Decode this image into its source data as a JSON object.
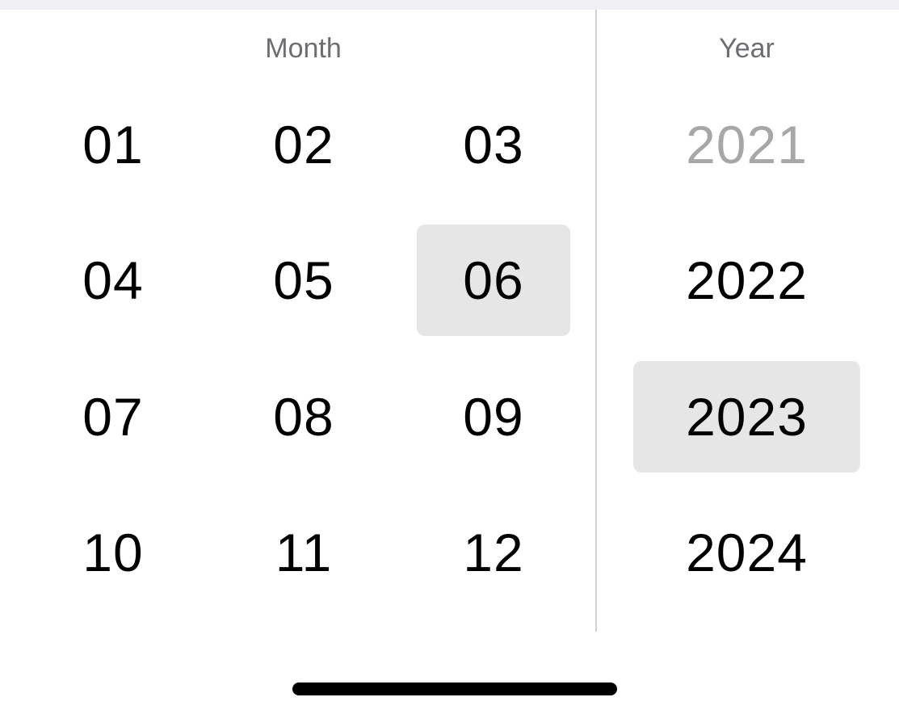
{
  "month_picker": {
    "header": "Month",
    "selected": "06",
    "items": [
      "01",
      "02",
      "03",
      "04",
      "05",
      "06",
      "07",
      "08",
      "09",
      "10",
      "11",
      "12"
    ]
  },
  "year_picker": {
    "header": "Year",
    "selected": "2023",
    "items": [
      "2021",
      "2022",
      "2023",
      "2024"
    ],
    "dimmed": [
      "2021"
    ]
  },
  "colors": {
    "selected_bg": "#e6e6e6",
    "dim_text": "#a7a7a7",
    "header_text": "#6d6d72",
    "divider": "#d1d1d6"
  }
}
